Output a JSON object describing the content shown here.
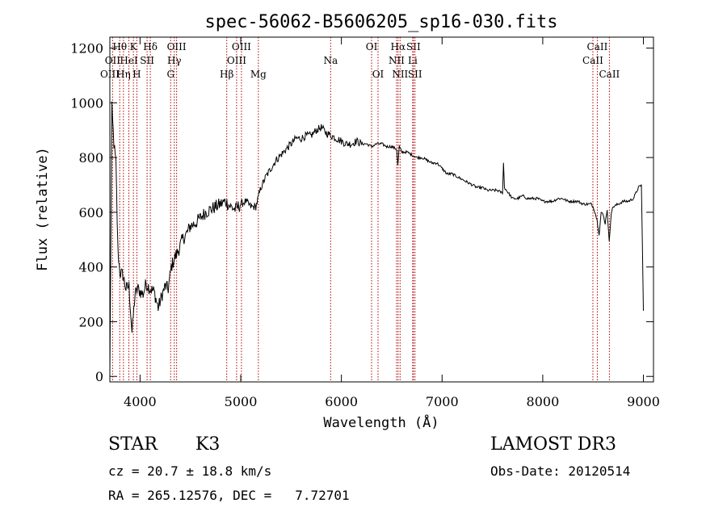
{
  "chart_data": {
    "type": "line",
    "title": "spec-56062-B5606205_sp16-030.fits",
    "xlabel": "Wavelength (Å)",
    "ylabel": "Flux (relative)",
    "xlim": [
      3700,
      9100
    ],
    "ylim": [
      -20,
      1240
    ],
    "xticks": [
      4000,
      5000,
      6000,
      7000,
      8000,
      9000
    ],
    "yticks": [
      0,
      200,
      400,
      600,
      800,
      1000,
      1200
    ],
    "grid": false,
    "series": [
      {
        "name": "flux",
        "x": [
          3700,
          3720,
          3740,
          3760,
          3780,
          3800,
          3830,
          3860,
          3890,
          3920,
          3950,
          3980,
          4000,
          4030,
          4060,
          4100,
          4140,
          4180,
          4220,
          4250,
          4280,
          4310,
          4340,
          4380,
          4420,
          4460,
          4500,
          4550,
          4600,
          4650,
          4700,
          4750,
          4800,
          4850,
          4900,
          4950,
          5000,
          5050,
          5100,
          5150,
          5200,
          5250,
          5300,
          5350,
          5400,
          5450,
          5500,
          5550,
          5600,
          5650,
          5700,
          5750,
          5800,
          5850,
          5900,
          5950,
          6000,
          6050,
          6100,
          6150,
          6200,
          6250,
          6300,
          6350,
          6400,
          6450,
          6500,
          6550,
          6560,
          6575,
          6600,
          6650,
          6700,
          6750,
          6800,
          6850,
          6900,
          6950,
          7000,
          7050,
          7100,
          7150,
          7200,
          7250,
          7300,
          7350,
          7400,
          7450,
          7500,
          7550,
          7600,
          7610,
          7620,
          7640,
          7660,
          7700,
          7750,
          7800,
          7850,
          7900,
          7950,
          8000,
          8050,
          8100,
          8150,
          8200,
          8250,
          8300,
          8350,
          8400,
          8450,
          8480,
          8500,
          8520,
          8540,
          8560,
          8580,
          8600,
          8620,
          8640,
          8660,
          8680,
          8700,
          8750,
          8800,
          8850,
          8900,
          8950,
          8980,
          9000
        ],
        "values": [
          5,
          980,
          850,
          780,
          460,
          380,
          370,
          320,
          330,
          160,
          300,
          320,
          310,
          300,
          340,
          320,
          310,
          250,
          300,
          330,
          320,
          400,
          430,
          460,
          500,
          520,
          550,
          560,
          580,
          600,
          610,
          620,
          630,
          640,
          620,
          610,
          630,
          640,
          620,
          620,
          690,
          730,
          760,
          790,
          810,
          830,
          850,
          870,
          870,
          880,
          880,
          900,
          910,
          890,
          880,
          870,
          860,
          850,
          850,
          860,
          850,
          850,
          840,
          850,
          850,
          840,
          840,
          830,
          770,
          840,
          820,
          820,
          810,
          800,
          800,
          790,
          780,
          780,
          760,
          740,
          740,
          730,
          720,
          710,
          700,
          690,
          690,
          680,
          680,
          680,
          670,
          780,
          690,
          680,
          670,
          650,
          650,
          660,
          650,
          650,
          650,
          640,
          640,
          640,
          650,
          650,
          640,
          640,
          640,
          630,
          630,
          630,
          620,
          600,
          570,
          520,
          600,
          590,
          560,
          610,
          490,
          600,
          620,
          630,
          640,
          640,
          650,
          690,
          700,
          240
        ]
      }
    ],
    "line_markers": [
      {
        "label": "Hθ",
        "wavelength": 3798,
        "row": 1
      },
      {
        "label": "OII",
        "wavelength": 3727,
        "row": 2
      },
      {
        "label": "OIII",
        "wavelength": 3700,
        "row": 3
      },
      {
        "label": "K",
        "wavelength": 3934,
        "row": 1
      },
      {
        "label": "HeI",
        "wavelength": 3889,
        "row": 2
      },
      {
        "label": "Hη",
        "wavelength": 3835,
        "row": 3
      },
      {
        "label": "SII",
        "wavelength": 4070,
        "row": 2
      },
      {
        "label": "H",
        "wavelength": 3968,
        "row": 3
      },
      {
        "label": "Hδ",
        "wavelength": 4102,
        "row": 1
      },
      {
        "label": "OIII",
        "wavelength": 4363,
        "row": 1
      },
      {
        "label": "Hγ",
        "wavelength": 4340,
        "row": 2
      },
      {
        "label": "G",
        "wavelength": 4304,
        "row": 3
      },
      {
        "label": "Hβ",
        "wavelength": 4861,
        "row": 3
      },
      {
        "label": "OIII",
        "wavelength": 5007,
        "row": 1
      },
      {
        "label": "OIII",
        "wavelength": 4959,
        "row": 2
      },
      {
        "label": "Mg",
        "wavelength": 5175,
        "row": 3
      },
      {
        "label": "Na",
        "wavelength": 5893,
        "row": 2
      },
      {
        "label": "OI",
        "wavelength": 6300,
        "row": 1
      },
      {
        "label": "OI",
        "wavelength": 6364,
        "row": 3
      },
      {
        "label": "Hα",
        "wavelength": 6563,
        "row": 1
      },
      {
        "label": "SII",
        "wavelength": 6716,
        "row": 1
      },
      {
        "label": "NII",
        "wavelength": 6548,
        "row": 2
      },
      {
        "label": "Li",
        "wavelength": 6708,
        "row": 2
      },
      {
        "label": "NII",
        "wavelength": 6583,
        "row": 3
      },
      {
        "label": "SII",
        "wavelength": 6731,
        "row": 3
      },
      {
        "label": "CaII",
        "wavelength": 8542,
        "row": 1
      },
      {
        "label": "CaII",
        "wavelength": 8498,
        "row": 2
      },
      {
        "label": "CaII",
        "wavelength": 8662,
        "row": 3
      }
    ]
  },
  "info": {
    "class": "STAR",
    "subclass": "K3",
    "survey": "LAMOST DR3",
    "cz": "cz = 20.7 ± 18.8 km/s",
    "obs_date": "Obs-Date: 20120514",
    "coords": "RA = 265.12576, DEC =   7.72701"
  },
  "colors": {
    "spectrum": "#000000",
    "marker_line": "#b00000"
  }
}
